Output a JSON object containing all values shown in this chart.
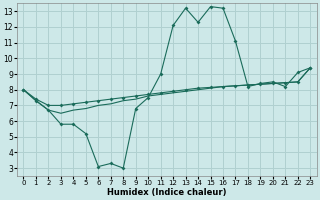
{
  "xlabel": "Humidex (Indice chaleur)",
  "background_color": "#cde8e8",
  "grid_color": "#b0d0d0",
  "line_color": "#1a6b5a",
  "xlim": [
    -0.5,
    23.5
  ],
  "ylim": [
    2.5,
    13.5
  ],
  "xticks": [
    0,
    1,
    2,
    3,
    4,
    5,
    6,
    7,
    8,
    9,
    10,
    11,
    12,
    13,
    14,
    15,
    16,
    17,
    18,
    19,
    20,
    21,
    22,
    23
  ],
  "yticks": [
    3,
    4,
    5,
    6,
    7,
    8,
    9,
    10,
    11,
    12,
    13
  ],
  "line1_x": [
    0,
    1,
    2,
    3,
    4,
    5,
    6,
    7,
    8,
    9,
    10,
    11,
    12,
    13,
    14,
    15,
    16,
    17,
    18,
    19,
    20,
    21,
    22,
    23
  ],
  "line1_y": [
    8.0,
    7.3,
    6.7,
    5.8,
    5.8,
    5.2,
    3.1,
    3.3,
    3.0,
    6.8,
    7.5,
    9.0,
    12.1,
    13.2,
    12.3,
    13.3,
    13.2,
    11.1,
    8.2,
    8.4,
    8.5,
    8.2,
    9.1,
    9.4
  ],
  "line2_x": [
    0,
    1,
    2,
    3,
    4,
    5,
    6,
    7,
    8,
    9,
    10,
    11,
    12,
    13,
    14,
    15,
    16,
    17,
    18,
    19,
    20,
    21,
    22,
    23
  ],
  "line2_y": [
    8.0,
    7.4,
    7.0,
    7.0,
    7.1,
    7.2,
    7.3,
    7.4,
    7.5,
    7.6,
    7.7,
    7.8,
    7.9,
    8.0,
    8.1,
    8.15,
    8.2,
    8.25,
    8.3,
    8.35,
    8.4,
    8.45,
    8.5,
    9.4
  ],
  "line3_x": [
    0,
    1,
    2,
    3,
    4,
    5,
    6,
    7,
    8,
    9,
    10,
    11,
    12,
    13,
    14,
    15,
    16,
    17,
    18,
    19,
    20,
    21,
    22,
    23
  ],
  "line3_y": [
    8.0,
    7.3,
    6.7,
    6.5,
    6.7,
    6.8,
    7.0,
    7.1,
    7.3,
    7.4,
    7.6,
    7.7,
    7.8,
    7.9,
    8.0,
    8.1,
    8.2,
    8.25,
    8.3,
    8.35,
    8.4,
    8.45,
    8.5,
    9.4
  ]
}
